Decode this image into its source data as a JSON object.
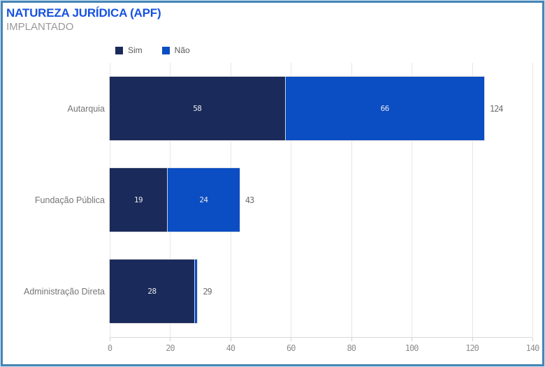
{
  "widget": {
    "title": "NATUREZA JURÍDICA (APF)",
    "subtitle": "IMPLANTADO"
  },
  "colors": {
    "title": "#1652e0",
    "subtitle": "#9a9a9a",
    "border": "#4685b5",
    "border_glow": "#b5d5e9",
    "sim": "#1a2a5a",
    "nao": "#0b4dc2",
    "gridline": "#e7e7e7",
    "category_label": "#757575",
    "total_label": "#6e6e6e",
    "tick_label": "#8f8f8f",
    "segment_label": "#e8eaed"
  },
  "chart_data": {
    "type": "bar",
    "orientation": "horizontal",
    "stacked": true,
    "title": "NATUREZA JURÍDICA (APF)",
    "subtitle": "IMPLANTADO",
    "categories": [
      "Autarquia",
      "Fundação Pública",
      "Administração Direta"
    ],
    "series": [
      {
        "name": "Sim",
        "color": "#1a2a5a",
        "values": [
          58,
          19,
          28
        ]
      },
      {
        "name": "Não",
        "color": "#0b4dc2",
        "values": [
          66,
          24,
          1
        ]
      }
    ],
    "totals": [
      124,
      43,
      29
    ],
    "visible_segment_labels": [
      [
        58,
        66
      ],
      [
        19,
        24
      ],
      [
        28,
        null
      ]
    ],
    "xlim": [
      0,
      140
    ],
    "xticks": [
      0,
      20,
      40,
      60,
      80,
      100,
      120,
      140
    ],
    "grid": "vertical",
    "legend_position": "top"
  }
}
